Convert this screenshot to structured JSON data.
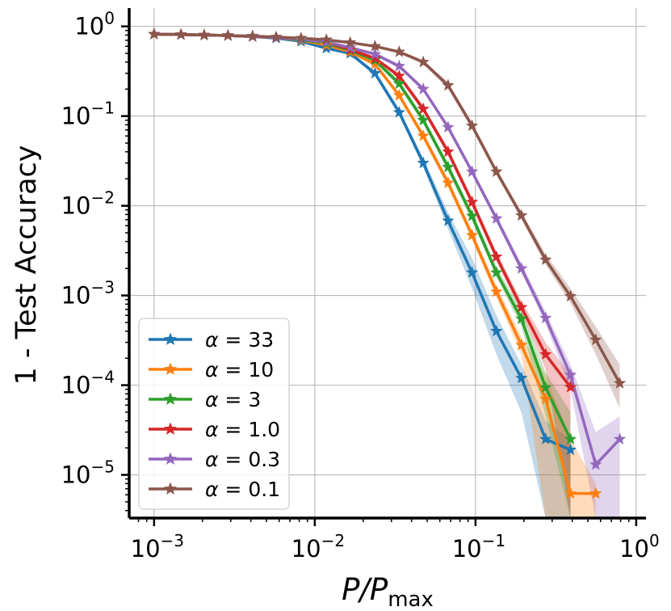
{
  "chart_data": {
    "type": "line",
    "xscale": "log",
    "yscale": "log",
    "xlim": [
      0.0007,
      1.15
    ],
    "ylim": [
      3.3e-06,
      1.6
    ],
    "xlabel": {
      "main": "P/P",
      "sub": "max"
    },
    "ylabel": "1 - Test Accuracy",
    "grid": true,
    "legend_position": "lower-left",
    "xticks": [
      {
        "value": 0.001,
        "base": "10",
        "exp": "−3"
      },
      {
        "value": 0.01,
        "base": "10",
        "exp": "−2"
      },
      {
        "value": 0.1,
        "base": "10",
        "exp": "−1"
      },
      {
        "value": 1,
        "base": "10",
        "exp": "0"
      }
    ],
    "yticks": [
      {
        "value": 1,
        "base": "10",
        "exp": "0"
      },
      {
        "value": 0.1,
        "base": "10",
        "exp": "−1"
      },
      {
        "value": 0.01,
        "base": "10",
        "exp": "−2"
      },
      {
        "value": 0.001,
        "base": "10",
        "exp": "−3"
      },
      {
        "value": 0.0001,
        "base": "10",
        "exp": "−4"
      },
      {
        "value": 1e-05,
        "base": "10",
        "exp": "−5"
      }
    ],
    "series": [
      {
        "name": "α = 33",
        "symbol": "α",
        "value_label": "= 33",
        "color": "#1f77b4",
        "x": [
          0.001,
          0.00147,
          0.00205,
          0.00288,
          0.0041,
          0.00575,
          0.00821,
          0.0118,
          0.0166,
          0.0237,
          0.0335,
          0.0473,
          0.0675,
          0.0952,
          0.135,
          0.193,
          0.273,
          0.39
        ],
        "y": [
          0.82,
          0.81,
          0.8,
          0.79,
          0.77,
          0.74,
          0.68,
          0.57,
          0.5,
          0.3,
          0.11,
          0.03,
          0.0068,
          0.0018,
          0.0004,
          0.00012,
          2.5e-05,
          1.9e-05
        ],
        "band": [
          [
            0.8,
            0.84
          ],
          [
            0.79,
            0.83
          ],
          [
            0.78,
            0.82
          ],
          [
            0.77,
            0.81
          ],
          [
            0.75,
            0.79
          ],
          [
            0.72,
            0.76
          ],
          [
            0.66,
            0.7
          ],
          [
            0.55,
            0.59
          ],
          [
            0.48,
            0.52
          ],
          [
            0.28,
            0.32
          ],
          [
            0.1,
            0.12
          ],
          [
            0.027,
            0.034
          ],
          [
            0.0055,
            0.0085
          ],
          [
            0.0012,
            0.0026
          ],
          [
            0.00022,
            0.0006
          ],
          [
            5e-05,
            0.00017
          ],
          [
            3.3e-06,
            4e-05
          ],
          [
            3.3e-06,
            2.5e-05
          ]
        ]
      },
      {
        "name": "α = 10",
        "symbol": "α",
        "value_label": "= 10",
        "color": "#ff7f0e",
        "x": [
          0.001,
          0.00147,
          0.00205,
          0.00288,
          0.0041,
          0.00575,
          0.00821,
          0.0118,
          0.0166,
          0.0237,
          0.0335,
          0.0473,
          0.0675,
          0.0952,
          0.135,
          0.193,
          0.273,
          0.39,
          0.56
        ],
        "y": [
          0.82,
          0.81,
          0.8,
          0.79,
          0.77,
          0.75,
          0.7,
          0.62,
          0.52,
          0.38,
          0.17,
          0.06,
          0.018,
          0.0047,
          0.0011,
          0.00028,
          7e-05,
          6.2e-06,
          6.2e-06
        ],
        "band": [
          [
            0.8,
            0.84
          ],
          [
            0.79,
            0.83
          ],
          [
            0.78,
            0.82
          ],
          [
            0.77,
            0.81
          ],
          [
            0.75,
            0.79
          ],
          [
            0.73,
            0.77
          ],
          [
            0.68,
            0.72
          ],
          [
            0.6,
            0.64
          ],
          [
            0.5,
            0.54
          ],
          [
            0.36,
            0.4
          ],
          [
            0.16,
            0.18
          ],
          [
            0.055,
            0.066
          ],
          [
            0.016,
            0.02
          ],
          [
            0.0042,
            0.0053
          ],
          [
            0.00095,
            0.0013
          ],
          [
            0.00022,
            0.00035
          ],
          [
            3.3e-06,
            0.00013
          ],
          [
            3.3e-06,
            2.5e-05
          ],
          [
            3.3e-06,
            8e-06
          ]
        ]
      },
      {
        "name": "α = 3",
        "symbol": "α",
        "value_label": "= 3",
        "color": "#2ca02c",
        "x": [
          0.001,
          0.00147,
          0.00205,
          0.00288,
          0.0041,
          0.00575,
          0.00821,
          0.0118,
          0.0166,
          0.0237,
          0.0335,
          0.0473,
          0.0675,
          0.0952,
          0.135,
          0.193,
          0.273,
          0.39
        ],
        "y": [
          0.82,
          0.81,
          0.8,
          0.79,
          0.77,
          0.75,
          0.71,
          0.65,
          0.54,
          0.42,
          0.23,
          0.09,
          0.027,
          0.0077,
          0.0018,
          0.00055,
          9.4e-05,
          2.5e-05
        ],
        "band": [
          [
            0.8,
            0.84
          ],
          [
            0.79,
            0.83
          ],
          [
            0.78,
            0.82
          ],
          [
            0.77,
            0.81
          ],
          [
            0.75,
            0.79
          ],
          [
            0.73,
            0.77
          ],
          [
            0.69,
            0.73
          ],
          [
            0.63,
            0.67
          ],
          [
            0.52,
            0.56
          ],
          [
            0.4,
            0.44
          ],
          [
            0.21,
            0.25
          ],
          [
            0.082,
            0.098
          ],
          [
            0.024,
            0.03
          ],
          [
            0.0068,
            0.0087
          ],
          [
            0.0016,
            0.0021
          ],
          [
            0.00045,
            0.00068
          ],
          [
            4.5e-05,
            0.00014
          ],
          [
            3.3e-06,
            5e-05
          ]
        ]
      },
      {
        "name": "α = 1.0",
        "symbol": "α",
        "value_label": "= 1.0",
        "color": "#d62728",
        "x": [
          0.001,
          0.00147,
          0.00205,
          0.00288,
          0.0041,
          0.00575,
          0.00821,
          0.0118,
          0.0166,
          0.0237,
          0.0335,
          0.0473,
          0.0675,
          0.0952,
          0.135,
          0.193,
          0.273,
          0.39
        ],
        "y": [
          0.82,
          0.81,
          0.8,
          0.79,
          0.77,
          0.75,
          0.72,
          0.67,
          0.55,
          0.44,
          0.28,
          0.12,
          0.04,
          0.011,
          0.0027,
          0.00074,
          0.00022,
          9.5e-05
        ],
        "band": [
          [
            0.8,
            0.84
          ],
          [
            0.79,
            0.83
          ],
          [
            0.78,
            0.82
          ],
          [
            0.77,
            0.81
          ],
          [
            0.75,
            0.79
          ],
          [
            0.73,
            0.77
          ],
          [
            0.7,
            0.74
          ],
          [
            0.65,
            0.69
          ],
          [
            0.53,
            0.57
          ],
          [
            0.42,
            0.46
          ],
          [
            0.26,
            0.3
          ],
          [
            0.11,
            0.13
          ],
          [
            0.036,
            0.044
          ],
          [
            0.0098,
            0.0123
          ],
          [
            0.0024,
            0.0031
          ],
          [
            0.00064,
            0.00087
          ],
          [
            0.00015,
            0.0003
          ],
          [
            3.3e-06,
            0.00013
          ]
        ]
      },
      {
        "name": "α = 0.3",
        "symbol": "α",
        "value_label": "= 0.3",
        "color": "#9467bd",
        "x": [
          0.001,
          0.00147,
          0.00205,
          0.00288,
          0.0041,
          0.00575,
          0.00821,
          0.0118,
          0.0166,
          0.0237,
          0.0335,
          0.0473,
          0.0675,
          0.0952,
          0.135,
          0.193,
          0.273,
          0.39,
          0.56,
          0.79
        ],
        "y": [
          0.82,
          0.81,
          0.8,
          0.79,
          0.77,
          0.75,
          0.72,
          0.67,
          0.58,
          0.49,
          0.36,
          0.2,
          0.075,
          0.024,
          0.0072,
          0.002,
          0.00056,
          0.00013,
          1.3e-05,
          2.5e-05
        ],
        "band": [
          [
            0.8,
            0.84
          ],
          [
            0.79,
            0.83
          ],
          [
            0.78,
            0.82
          ],
          [
            0.77,
            0.81
          ],
          [
            0.75,
            0.79
          ],
          [
            0.73,
            0.77
          ],
          [
            0.7,
            0.74
          ],
          [
            0.65,
            0.69
          ],
          [
            0.56,
            0.6
          ],
          [
            0.47,
            0.51
          ],
          [
            0.34,
            0.38
          ],
          [
            0.19,
            0.21
          ],
          [
            0.07,
            0.08
          ],
          [
            0.022,
            0.026
          ],
          [
            0.0066,
            0.0079
          ],
          [
            0.0018,
            0.0023
          ],
          [
            0.00048,
            0.00066
          ],
          [
            9e-05,
            0.00017
          ],
          [
            3.3e-06,
            3e-05
          ],
          [
            3.3e-06,
            4.5e-05
          ]
        ]
      },
      {
        "name": "α = 0.1",
        "symbol": "α",
        "value_label": "= 0.1",
        "color": "#8c564b",
        "x": [
          0.001,
          0.00147,
          0.00205,
          0.00288,
          0.0041,
          0.00575,
          0.00821,
          0.0118,
          0.0166,
          0.0237,
          0.0335,
          0.0473,
          0.0675,
          0.0952,
          0.135,
          0.193,
          0.273,
          0.39,
          0.56,
          0.79
        ],
        "y": [
          0.82,
          0.81,
          0.8,
          0.79,
          0.78,
          0.76,
          0.74,
          0.71,
          0.66,
          0.6,
          0.52,
          0.4,
          0.22,
          0.078,
          0.024,
          0.0078,
          0.0025,
          0.00098,
          0.00032,
          0.000105
        ],
        "band": [
          [
            0.8,
            0.84
          ],
          [
            0.79,
            0.83
          ],
          [
            0.78,
            0.82
          ],
          [
            0.77,
            0.81
          ],
          [
            0.76,
            0.8
          ],
          [
            0.74,
            0.78
          ],
          [
            0.72,
            0.76
          ],
          [
            0.69,
            0.73
          ],
          [
            0.64,
            0.68
          ],
          [
            0.58,
            0.62
          ],
          [
            0.5,
            0.54
          ],
          [
            0.38,
            0.42
          ],
          [
            0.2,
            0.24
          ],
          [
            0.072,
            0.085
          ],
          [
            0.022,
            0.026
          ],
          [
            0.0071,
            0.0086
          ],
          [
            0.0022,
            0.0029
          ],
          [
            0.00082,
            0.0012
          ],
          [
            0.00022,
            0.00045
          ],
          [
            5.5e-05,
            0.00017
          ]
        ]
      }
    ]
  }
}
